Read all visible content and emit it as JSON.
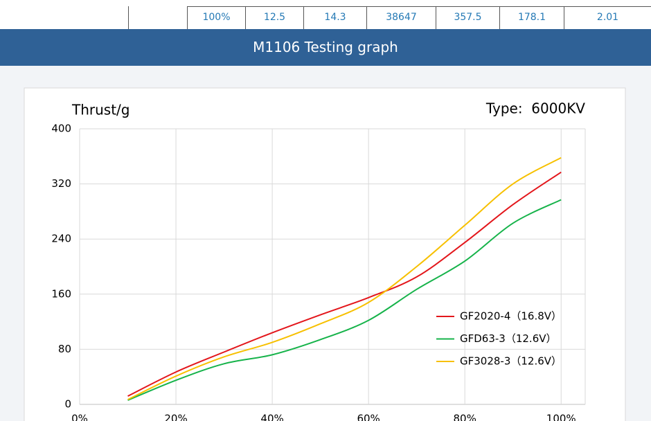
{
  "table": {
    "cells": [
      "100%",
      "12.5",
      "14.3",
      "38647",
      "357.5",
      "178.1",
      "2.01"
    ]
  },
  "banner": {
    "title": "M1106 Testing graph"
  },
  "chart_data": {
    "type": "line",
    "y_label": "Thrust/g",
    "annotation": "Type:  6000KV",
    "x": [
      10,
      20,
      30,
      40,
      50,
      60,
      70,
      80,
      90,
      100
    ],
    "series": [
      {
        "name": "GF2020-4（16.8V）",
        "color": "#e3161b",
        "values": [
          12,
          47,
          76,
          104,
          130,
          155,
          185,
          235,
          290,
          337
        ]
      },
      {
        "name": "GFD63-3（12.6V）",
        "color": "#16b34a",
        "values": [
          6,
          35,
          59,
          72,
          94,
          122,
          167,
          208,
          263,
          297
        ]
      },
      {
        "name": "GF3028-3（12.6V）",
        "color": "#f7c000",
        "values": [
          7,
          41,
          69,
          90,
          117,
          148,
          200,
          260,
          320,
          358
        ]
      }
    ],
    "xlim": [
      0,
      105
    ],
    "ylim": [
      0,
      400
    ],
    "xticks": [
      {
        "value": 0,
        "label": "0%"
      },
      {
        "value": 20,
        "label": "20%"
      },
      {
        "value": 40,
        "label": "40%"
      },
      {
        "value": 60,
        "label": "60%"
      },
      {
        "value": 80,
        "label": "80%"
      },
      {
        "value": 100,
        "label": "100%"
      }
    ],
    "yticks": [
      0,
      80,
      160,
      240,
      320,
      400
    ],
    "grid": true,
    "legend": "right"
  }
}
